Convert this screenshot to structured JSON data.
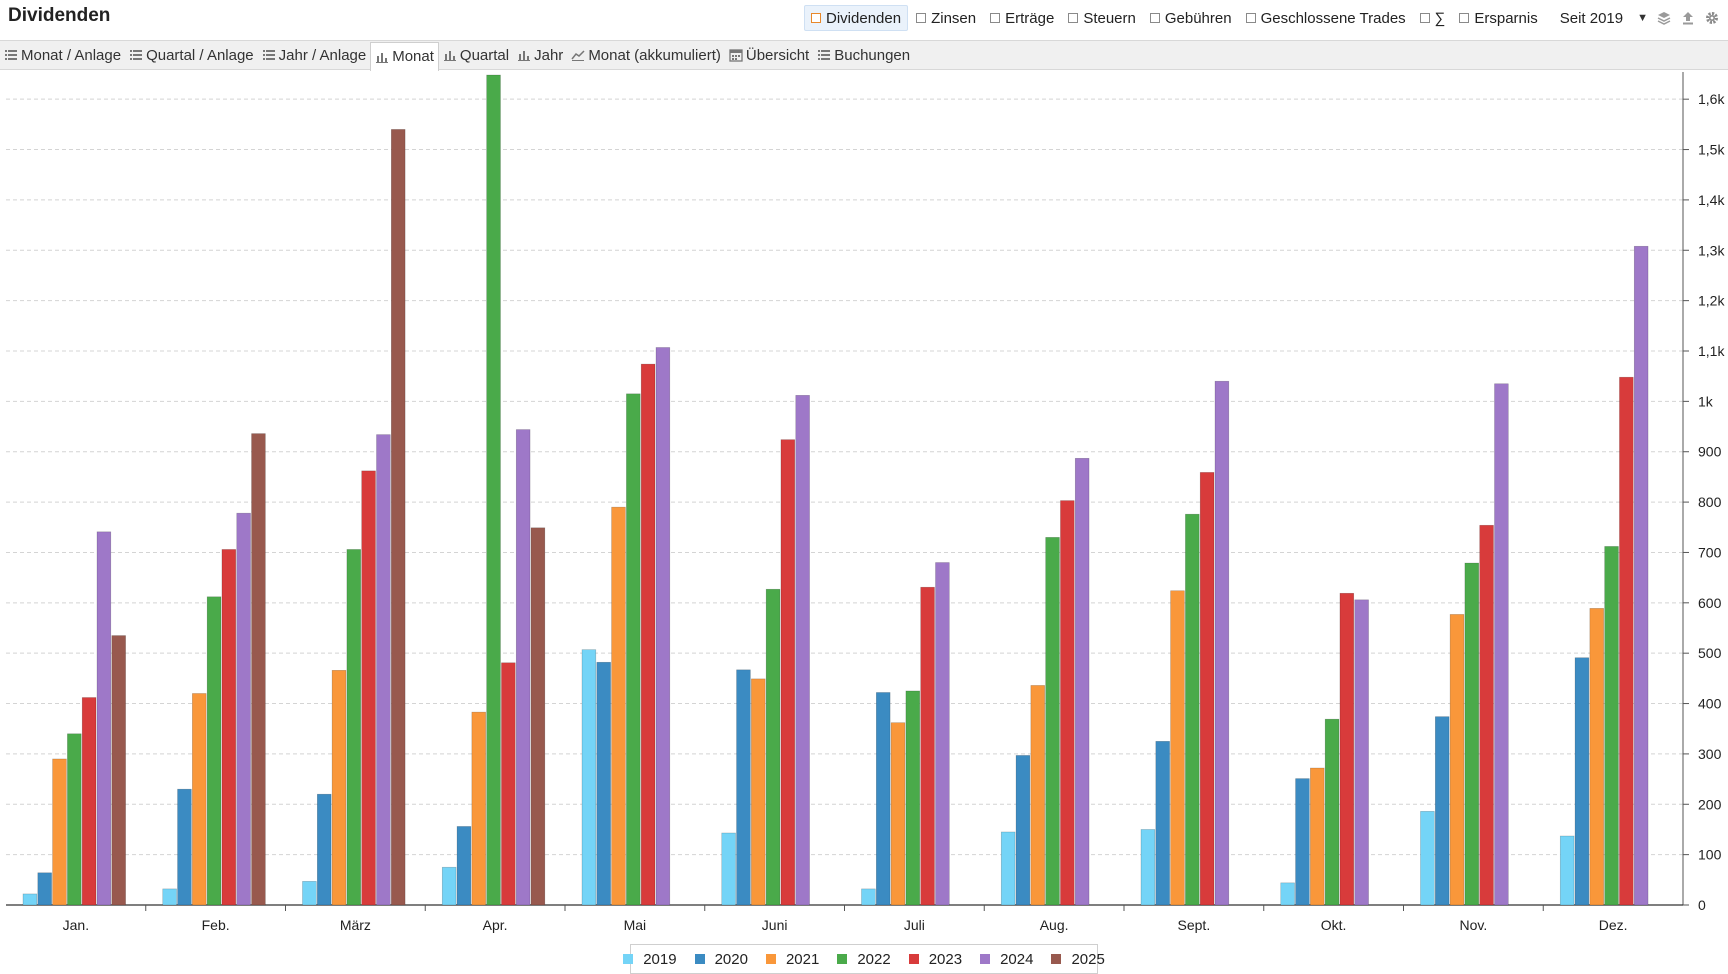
{
  "header": {
    "title": "Dividenden",
    "filters": [
      {
        "label": "Dividenden",
        "active": true
      },
      {
        "label": "Zinsen",
        "active": false
      },
      {
        "label": "Erträge",
        "active": false
      },
      {
        "label": "Steuern",
        "active": false
      },
      {
        "label": "Gebühren",
        "active": false
      },
      {
        "label": "Geschlossene Trades",
        "active": false
      },
      {
        "label": "∑",
        "active": false
      },
      {
        "label": "Ersparnis",
        "active": false
      }
    ],
    "period": "Seit 2019",
    "icons": [
      "dropdown-arrow-icon",
      "layers-icon",
      "export-icon",
      "gear-icon"
    ]
  },
  "tabs": [
    {
      "label": "Monat / Anlage",
      "icon": "list-icon",
      "active": false
    },
    {
      "label": "Quartal / Anlage",
      "icon": "list-icon",
      "active": false
    },
    {
      "label": "Jahr / Anlage",
      "icon": "list-icon",
      "active": false
    },
    {
      "label": "Monat",
      "icon": "bar-chart-icon",
      "active": true
    },
    {
      "label": "Quartal",
      "icon": "bar-chart-icon",
      "active": false
    },
    {
      "label": "Jahr",
      "icon": "bar-chart-icon",
      "active": false
    },
    {
      "label": "Monat (akkumuliert)",
      "icon": "line-chart-icon",
      "active": false
    },
    {
      "label": "Übersicht",
      "icon": "calendar-icon",
      "active": false
    },
    {
      "label": "Buchungen",
      "icon": "list-icon",
      "active": false
    }
  ],
  "chart_data": {
    "type": "bar",
    "categories": [
      "Jan.",
      "Feb.",
      "März",
      "Apr.",
      "Mai",
      "Juni",
      "Juli",
      "Aug.",
      "Sept.",
      "Okt.",
      "Nov.",
      "Dez."
    ],
    "ylim": [
      0,
      1650
    ],
    "yticks": [
      0,
      100,
      200,
      300,
      400,
      500,
      600,
      700,
      800,
      900,
      1000,
      1100,
      1200,
      1300,
      1400,
      1500,
      1600
    ],
    "ytick_labels": [
      "0",
      "100",
      "200",
      "300",
      "400",
      "500",
      "600",
      "700",
      "800",
      "900",
      "1k",
      "1,1k",
      "1,2k",
      "1,3k",
      "1,4k",
      "1,5k",
      "1,6k"
    ],
    "grid": true,
    "legend_position": "bottom-center",
    "series": [
      {
        "name": "2019",
        "color": "#74d4f7",
        "values": [
          22,
          32,
          47,
          75,
          507,
          143,
          32,
          145,
          150,
          44,
          186,
          137
        ]
      },
      {
        "name": "2020",
        "color": "#3b8bc2",
        "values": [
          64,
          230,
          220,
          156,
          482,
          467,
          422,
          297,
          325,
          251,
          374,
          491
        ]
      },
      {
        "name": "2021",
        "color": "#f9973a",
        "values": [
          290,
          420,
          466,
          383,
          790,
          449,
          362,
          436,
          624,
          272,
          577,
          589
        ]
      },
      {
        "name": "2022",
        "color": "#4aaa4a",
        "values": [
          340,
          612,
          706,
          1648,
          1015,
          627,
          425,
          730,
          776,
          369,
          679,
          712
        ]
      },
      {
        "name": "2023",
        "color": "#d83b3b",
        "values": [
          412,
          706,
          862,
          481,
          1074,
          924,
          631,
          803,
          859,
          619,
          754,
          1048
        ]
      },
      {
        "name": "2024",
        "color": "#9e78c8",
        "values": [
          741,
          778,
          934,
          944,
          1107,
          1012,
          680,
          887,
          1040,
          606,
          1035,
          1308
        ]
      },
      {
        "name": "2025",
        "color": "#98594e",
        "values": [
          535,
          936,
          1540,
          749,
          null,
          null,
          null,
          null,
          null,
          null,
          null,
          null
        ]
      }
    ]
  }
}
